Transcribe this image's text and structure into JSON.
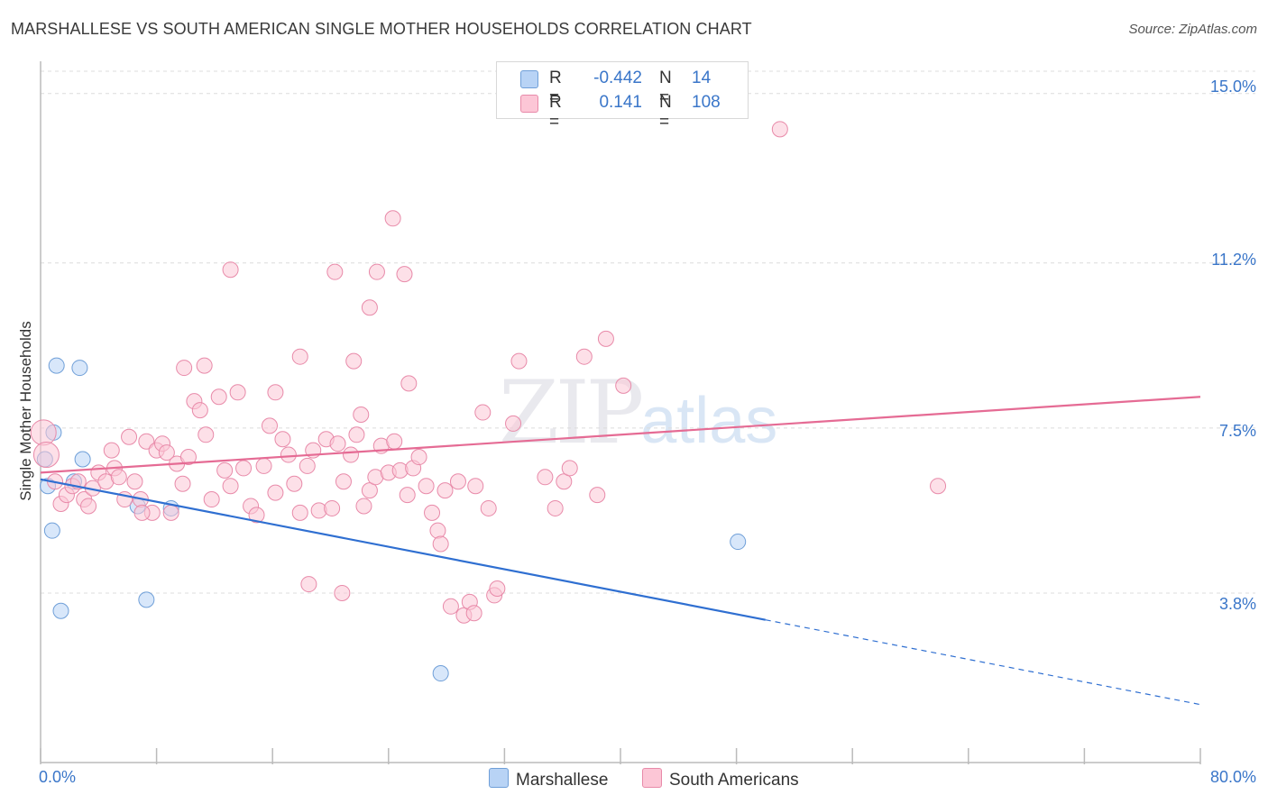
{
  "header": {
    "title": "MARSHALLESE VS SOUTH AMERICAN SINGLE MOTHER HOUSEHOLDS CORRELATION CHART",
    "source": "Source: ZipAtlas.com"
  },
  "watermark": {
    "zip": "ZIP",
    "atlas": "atlas"
  },
  "legend": {
    "rows": [
      {
        "r_label": "R =",
        "r_value": "-0.442",
        "n_label": "N =",
        "n_value": "14",
        "color": "#b8d3f5",
        "border": "#6f9fd8"
      },
      {
        "r_label": "R =",
        "r_value": "0.141",
        "n_label": "N =",
        "n_value": "108",
        "color": "#fcc6d6",
        "border": "#e88aa9"
      }
    ]
  },
  "bottom_legend": [
    {
      "label": "Marshallese",
      "color": "#b8d3f5",
      "border": "#6f9fd8"
    },
    {
      "label": "South Americans",
      "color": "#fcc6d6",
      "border": "#e88aa9"
    }
  ],
  "chart_data": {
    "type": "scatter",
    "title": "MARSHALLESE VS SOUTH AMERICAN SINGLE MOTHER HOUSEHOLDS CORRELATION CHART",
    "xlabel": "",
    "ylabel": "Single Mother Households",
    "xlim": [
      0,
      80
    ],
    "ylim": [
      0,
      15.5
    ],
    "x_tick_labels": [
      "0.0%",
      "80.0%"
    ],
    "y_ticks": [
      3.8,
      7.5,
      11.2,
      15.0
    ],
    "y_tick_labels": [
      "3.8%",
      "7.5%",
      "11.2%",
      "15.0%"
    ],
    "grid": true,
    "legend_position": "top-center",
    "series": [
      {
        "name": "Marshallese",
        "color": "#b8d3f5",
        "stroke": "#6f9fd8",
        "trend": {
          "x0": 0,
          "y0": 6.35,
          "x1": 50,
          "y1": 3.2,
          "dash_to_x": 80,
          "dash_to_y": 1.3,
          "color": "#2f6fd1"
        },
        "points": [
          [
            0.3,
            6.8
          ],
          [
            0.5,
            6.2
          ],
          [
            0.8,
            5.2
          ],
          [
            0.9,
            7.4
          ],
          [
            1.1,
            8.9
          ],
          [
            1.4,
            3.4
          ],
          [
            2.7,
            8.85
          ],
          [
            2.9,
            6.8
          ],
          [
            6.7,
            5.75
          ],
          [
            7.3,
            3.65
          ],
          [
            9.0,
            5.7
          ],
          [
            27.6,
            2.0
          ],
          [
            48.1,
            4.95
          ],
          [
            2.3,
            6.3
          ]
        ]
      },
      {
        "name": "South Americans",
        "color": "#fcc6d6",
        "stroke": "#e88aa9",
        "trend": {
          "x0": 0,
          "y0": 6.5,
          "x1": 80,
          "y1": 8.2,
          "color": "#e56b94"
        },
        "points": [
          [
            0.2,
            7.4
          ],
          [
            0.4,
            6.9
          ],
          [
            1.0,
            6.3
          ],
          [
            1.4,
            5.8
          ],
          [
            1.8,
            6.0
          ],
          [
            2.2,
            6.2
          ],
          [
            2.6,
            6.3
          ],
          [
            3.0,
            5.9
          ],
          [
            3.3,
            5.75
          ],
          [
            3.6,
            6.15
          ],
          [
            4.0,
            6.5
          ],
          [
            4.5,
            6.3
          ],
          [
            4.9,
            7.0
          ],
          [
            5.1,
            6.6
          ],
          [
            5.4,
            6.4
          ],
          [
            5.8,
            5.9
          ],
          [
            6.1,
            7.3
          ],
          [
            6.5,
            6.3
          ],
          [
            6.9,
            5.9
          ],
          [
            7.3,
            7.2
          ],
          [
            7.7,
            5.6
          ],
          [
            8.0,
            7.0
          ],
          [
            8.4,
            7.15
          ],
          [
            8.7,
            6.95
          ],
          [
            9.0,
            5.6
          ],
          [
            9.4,
            6.7
          ],
          [
            9.8,
            6.25
          ],
          [
            10.2,
            6.85
          ],
          [
            10.6,
            8.1
          ],
          [
            11.0,
            7.9
          ],
          [
            11.4,
            7.35
          ],
          [
            11.8,
            5.9
          ],
          [
            12.3,
            8.2
          ],
          [
            12.7,
            6.55
          ],
          [
            13.1,
            6.2
          ],
          [
            13.6,
            8.3
          ],
          [
            14.0,
            6.6
          ],
          [
            14.5,
            5.75
          ],
          [
            14.9,
            5.55
          ],
          [
            15.4,
            6.65
          ],
          [
            15.8,
            7.55
          ],
          [
            16.2,
            6.05
          ],
          [
            16.7,
            7.25
          ],
          [
            17.1,
            6.9
          ],
          [
            17.5,
            6.25
          ],
          [
            17.9,
            5.6
          ],
          [
            18.4,
            6.65
          ],
          [
            18.8,
            7.0
          ],
          [
            19.2,
            5.65
          ],
          [
            19.7,
            7.25
          ],
          [
            20.1,
            5.7
          ],
          [
            20.5,
            7.15
          ],
          [
            20.9,
            6.3
          ],
          [
            21.4,
            6.9
          ],
          [
            21.8,
            7.35
          ],
          [
            22.3,
            5.75
          ],
          [
            22.7,
            6.1
          ],
          [
            23.1,
            6.4
          ],
          [
            23.5,
            7.1
          ],
          [
            24.0,
            6.5
          ],
          [
            24.4,
            7.2
          ],
          [
            24.8,
            6.55
          ],
          [
            25.3,
            6.0
          ],
          [
            25.7,
            6.6
          ],
          [
            26.1,
            6.85
          ],
          [
            26.6,
            6.2
          ],
          [
            27.0,
            5.6
          ],
          [
            27.4,
            5.2
          ],
          [
            27.9,
            6.1
          ],
          [
            28.3,
            3.5
          ],
          [
            28.8,
            6.3
          ],
          [
            29.2,
            3.3
          ],
          [
            29.6,
            3.6
          ],
          [
            30.0,
            6.2
          ],
          [
            30.5,
            7.85
          ],
          [
            30.9,
            5.7
          ],
          [
            31.3,
            3.75
          ],
          [
            32.6,
            7.6
          ],
          [
            33.0,
            9.0
          ],
          [
            35.5,
            5.7
          ],
          [
            36.1,
            6.3
          ],
          [
            37.5,
            9.1
          ],
          [
            38.4,
            6.0
          ],
          [
            39.0,
            9.5
          ],
          [
            40.2,
            8.45
          ],
          [
            51.0,
            14.2
          ],
          [
            61.9,
            6.2
          ],
          [
            9.9,
            8.85
          ],
          [
            11.3,
            8.9
          ],
          [
            13.1,
            11.05
          ],
          [
            16.2,
            8.3
          ],
          [
            17.9,
            9.1
          ],
          [
            20.3,
            11.0
          ],
          [
            21.6,
            9.0
          ],
          [
            22.7,
            10.2
          ],
          [
            23.2,
            11.0
          ],
          [
            24.3,
            12.2
          ],
          [
            25.1,
            10.95
          ],
          [
            25.4,
            8.5
          ],
          [
            22.1,
            7.8
          ],
          [
            18.5,
            4.0
          ],
          [
            20.8,
            3.8
          ],
          [
            27.6,
            4.9
          ],
          [
            29.9,
            3.35
          ],
          [
            31.5,
            3.9
          ],
          [
            34.8,
            6.4
          ],
          [
            36.5,
            6.6
          ],
          [
            7.0,
            5.6
          ]
        ]
      }
    ]
  }
}
